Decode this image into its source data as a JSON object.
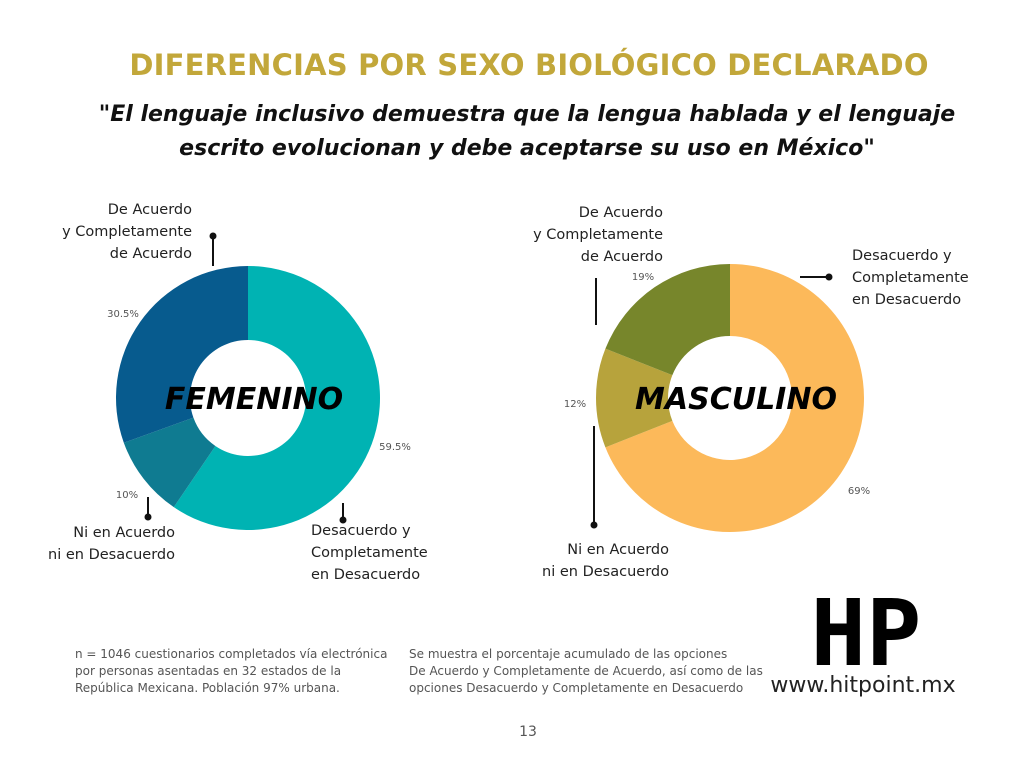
{
  "header": {
    "title": "DIFERENCIAS POR SEXO BIOLÓGICO DECLARADO",
    "subtitle": "\"El lenguaje inclusivo demuestra que la lengua hablada y el lenguaje\nescrito evolucionan y debe aceptarse su uso en México\""
  },
  "chart_data": [
    {
      "type": "pie",
      "center_label": "FEMENINO",
      "categories": [
        "Desacuerdo y\nCompletamente\nen Desacuerdo",
        "Ni en Acuerdo\nni en Desacuerdo",
        "De Acuerdo\ny Completamente\nde Acuerdo"
      ],
      "values": [
        59.5,
        10,
        30.5
      ],
      "value_labels": [
        "59.5%",
        "10%",
        "30.5%"
      ],
      "colors": [
        "#00b3b3",
        "#0f7b91",
        "#075b8e"
      ]
    },
    {
      "type": "pie",
      "center_label": "MASCULINO",
      "categories": [
        "Desacuerdo y\nCompletamente\nen Desacuerdo",
        "Ni en Acuerdo\nni en Desacuerdo",
        "De Acuerdo\ny Completamente\nde Acuerdo"
      ],
      "values": [
        69,
        12,
        19
      ],
      "value_labels": [
        "69%",
        "12%",
        "19%"
      ],
      "colors": [
        "#fcb95a",
        "#b7a33c",
        "#77862b"
      ]
    }
  ],
  "notes": [
    "n = 1046 cuestionarios completados vía electrónica\npor personas asentadas en 32 estados de la\nRepública Mexicana. Población 97% urbana.",
    "Se muestra el porcentaje acumulado de las opciones\nDe Acuerdo y Completamente de Acuerdo, así como de las\nopciones Desacuerdo y Completamente en Desacuerdo"
  ],
  "logo": {
    "mark": "HP",
    "url": "www.hitpoint.mx"
  },
  "page_number": "13"
}
